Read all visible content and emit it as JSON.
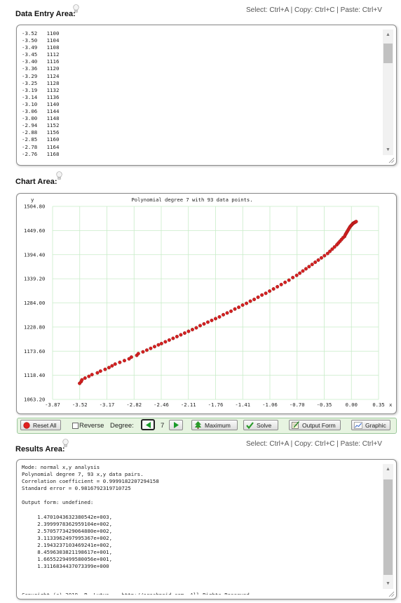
{
  "data_entry": {
    "title": "Data Entry Area:",
    "shortcuts": "Select: Ctrl+A | Copy: Ctrl+C | Paste: Ctrl+V",
    "lines": [
      "-3.52   1100",
      "-3.50   1104",
      "-3.49   1108",
      "-3.45   1112",
      "-3.40   1116",
      "-3.36   1120",
      "-3.29   1124",
      "-3.25   1128",
      "-3.19   1132",
      "-3.14   1136",
      "-3.10   1140",
      "-3.06   1144",
      "-3.00   1148",
      "-2.94   1152",
      "-2.88   1156",
      "-2.85   1160",
      "-2.78   1164",
      "-2.76   1168"
    ]
  },
  "chart_area": {
    "title": "Chart Area:"
  },
  "chart_data": {
    "type": "scatter",
    "title": "Polynomial degree 7 with 93 data points.",
    "xlabel": "x",
    "ylabel": "y",
    "xlim": [
      -3.87,
      0.35
    ],
    "ylim": [
      1063.2,
      1504.8
    ],
    "x_ticks": [
      "-3.87",
      "-3.52",
      "-3.17",
      "-2.82",
      "-2.46",
      "-2.11",
      "-1.76",
      "-1.41",
      "-1.06",
      "-0.70",
      "-0.35",
      "0.00",
      "0.35"
    ],
    "y_ticks": [
      "1504.80",
      "1449.60",
      "1394.40",
      "1339.20",
      "1284.00",
      "1228.80",
      "1173.60",
      "1118.40",
      "1063.20"
    ],
    "grid": true,
    "point_color": "#d42020",
    "grid_color": "#c8ecc8",
    "series": [
      {
        "x": [
          -3.52,
          -3.5,
          -3.49,
          -3.45,
          -3.4,
          -3.36,
          -3.29,
          -3.25,
          -3.19,
          -3.14,
          -3.1,
          -3.06,
          -3.0,
          -2.94,
          -2.88,
          -2.85,
          -2.78,
          -2.76,
          -2.7,
          -2.65,
          -2.6,
          -2.55,
          -2.5,
          -2.46,
          -2.41,
          -2.36,
          -2.31,
          -2.26,
          -2.21,
          -2.16,
          -2.11,
          -2.06,
          -2.01,
          -1.96,
          -1.91,
          -1.86,
          -1.81,
          -1.76,
          -1.71,
          -1.66,
          -1.61,
          -1.56,
          -1.51,
          -1.46,
          -1.41,
          -1.36,
          -1.31,
          -1.26,
          -1.21,
          -1.16,
          -1.11,
          -1.06,
          -1.01,
          -0.96,
          -0.91,
          -0.86,
          -0.81,
          -0.76,
          -0.71,
          -0.67,
          -0.63,
          -0.59,
          -0.55,
          -0.51,
          -0.47,
          -0.43,
          -0.39,
          -0.35,
          -0.31,
          -0.28,
          -0.25,
          -0.22,
          -0.19,
          -0.17,
          -0.15,
          -0.13,
          -0.11,
          -0.09,
          -0.08,
          -0.07,
          -0.06,
          -0.05,
          -0.04,
          -0.03,
          -0.02,
          -0.01,
          0.0,
          0.01,
          0.02,
          0.03,
          0.04,
          0.05,
          0.06
        ],
        "y": [
          1100,
          1104,
          1108,
          1112,
          1116,
          1120,
          1124,
          1128,
          1132,
          1136,
          1140,
          1144,
          1148,
          1152,
          1156,
          1160,
          1164,
          1168,
          1172,
          1176,
          1180,
          1184,
          1188,
          1191,
          1195,
          1199,
          1203,
          1207,
          1211,
          1215,
          1219,
          1223,
          1227,
          1232,
          1236,
          1240,
          1244,
          1248,
          1252,
          1257,
          1261,
          1265,
          1270,
          1274,
          1279,
          1283,
          1288,
          1292,
          1297,
          1302,
          1306,
          1311,
          1316,
          1321,
          1326,
          1331,
          1336,
          1342,
          1347,
          1352,
          1357,
          1362,
          1367,
          1372,
          1377,
          1382,
          1387,
          1392,
          1397,
          1402,
          1407,
          1412,
          1417,
          1421,
          1425,
          1429,
          1433,
          1436,
          1440,
          1443,
          1446,
          1449,
          1452,
          1455,
          1458,
          1460,
          1462,
          1464,
          1466,
          1467,
          1468,
          1469,
          1470
        ]
      }
    ]
  },
  "toolbar": {
    "reset_label": "Reset All",
    "reverse_label": "Reverse",
    "degree_label": "Degree:",
    "degree_value": "7",
    "maximum_label": "Maximum",
    "solve_label": "Solve",
    "output_form_label": "Output Form",
    "graphic_label": "Graphic"
  },
  "results": {
    "title": "Results Area:",
    "shortcuts": "Select: Ctrl+A | Copy: Ctrl+C | Paste: Ctrl+V",
    "lines": [
      "Mode: normal x,y analysis",
      "Polynomial degree 7, 93 x,y data pairs.",
      "Correlation coefficient = 0.9999182207294158",
      "Standard error = 0.9816792319710725",
      "",
      "Output form: undefined:",
      "",
      "     1.4701043632380542e+003,",
      "     2.3999978362959104e+002,",
      "     2.5705773429064880e+002,",
      "     3.1133962497995367e+002,",
      "     2.1943237103469241e+002,",
      "     8.4596303821198617e+001,",
      "     1.6655229499580056e+001,",
      "     1.3116834437073399e+000",
      "",
      "",
      "",
      "Copyright (c) 2019, P. Lutus -- http://arachnoid.com. All Rights Reserved."
    ]
  },
  "icons": [
    "lightbulb-icon",
    "red-dot-icon",
    "left-arrow-icon",
    "right-arrow-icon",
    "tree-icon",
    "checkmark-icon",
    "output-form-icon",
    "graphic-icon"
  ]
}
